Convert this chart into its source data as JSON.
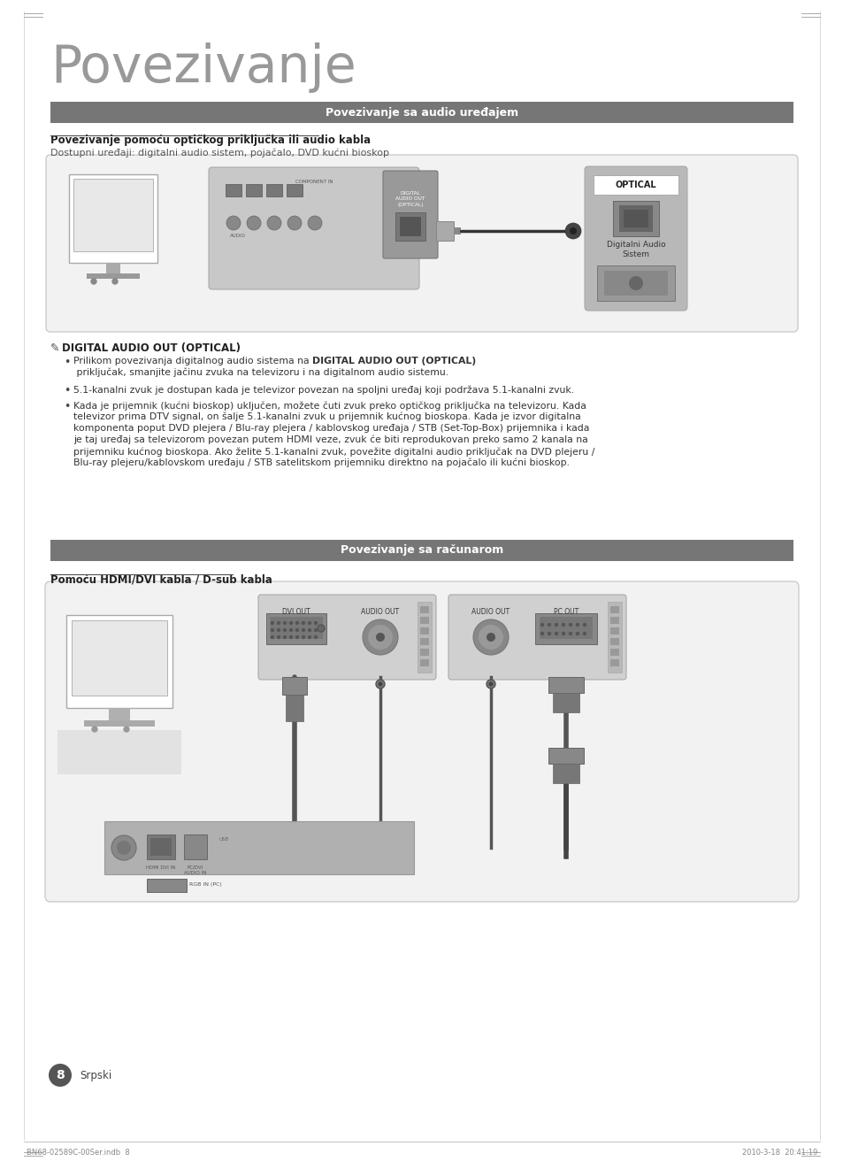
{
  "bg_color": "#ffffff",
  "page_title": "Povezivanje",
  "section1_header": "Povezivanje sa audio uređajem",
  "section1_subtitle": "Povezivanje pomoću optičkog priključka ili audio kabla",
  "section1_desc": "Dostupni uređaji: digitalni audio sistem, pojačalo, DVD kućni bioskop",
  "note_header": "DIGITAL AUDIO OUT (OPTICAL)",
  "bullet1_plain": "Prilikom povezivanja digitalnog audio sistema na ",
  "bullet1_bold": "DIGITAL AUDIO OUT (OPTICAL)",
  "bullet1_end": " priključak, smanjite jačinu\nzvuka na televizoru i na digitalnom audio sistemu.",
  "bullet2": "5.1-kanalni zvuk je dostupan kada je televizor povezan na spoljni uređaj koji podržava 5.1-kanalni zvuk.",
  "bullet3_line1": "Kada je prijemnik (kućni bioskop) uključen, možete čuti zvuk preko optičkog priključka na televizoru. Kada",
  "bullet3_line2": "televizor prima DTV signal, on šalje 5.1-kanalni zvuk u prijemnik kućnog bioskopa. Kada je izvor digitalna",
  "bullet3_line3": "komponenta poput DVD plejera / Blu-ray plejera / kablovskog uređaja / STB (Set-Top-Box) prijemnika i kada",
  "bullet3_line4": "je taj uređaj sa televizorom povezan putem HDMI veze, zvuk će biti reprodukovan preko samo 2 kanala na",
  "bullet3_line5": "prijemniku kućnog bioskopa. Ako želite 5.1-kanalni zvuk, povežite digitalni audio priključak na DVD plejeru /",
  "bullet3_line6": "Blu-ray plejeru/kablovskom uređaju / STB satelitskom prijemniku direktno na pojačalo ili kućni bioskop.",
  "section2_header": "Povezivanje sa računarom",
  "section2_subtitle": "Pomoću HDMI/DVI kabla / D-sub kabla",
  "footer_left": "BN68-02589C-00Ser.indb  8",
  "footer_right": "2010-3-18  20:41:19",
  "page_number": "8",
  "page_lang": "Srpski",
  "header_bg": "#767676",
  "header_fg": "#ffffff",
  "title_color": "#999999",
  "subtitle_color": "#222222",
  "text_color": "#333333",
  "diagram_bg": "#f2f2f2",
  "diagram_border": "#cccccc",
  "connector_dark": "#555555",
  "connector_mid": "#888888",
  "connector_light": "#bbbbbb",
  "panel_bg": "#b0b0b0",
  "optical_bg": "#aaaaaa"
}
